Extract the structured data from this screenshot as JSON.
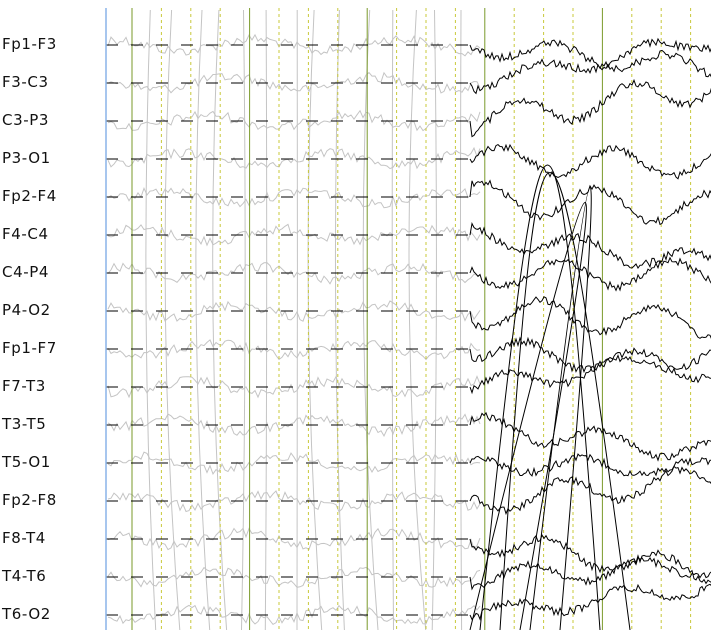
{
  "viewer": {
    "channels": [
      {
        "label": "Fp1-F3"
      },
      {
        "label": "F3-C3"
      },
      {
        "label": "C3-P3"
      },
      {
        "label": "P3-O1"
      },
      {
        "label": "Fp2-F4"
      },
      {
        "label": "F4-C4"
      },
      {
        "label": "C4-P4"
      },
      {
        "label": "P4-O2"
      },
      {
        "label": "Fp1-F7"
      },
      {
        "label": "F7-T3"
      },
      {
        "label": "T3-T5"
      },
      {
        "label": "T5-O1"
      },
      {
        "label": "Fp2-F8"
      },
      {
        "label": "F8-T4"
      },
      {
        "label": "T4-T6"
      },
      {
        "label": "T6-O2"
      }
    ],
    "colors": {
      "baseline": "#000000",
      "major_gridline": "#7a9a2a",
      "minor_gridline": "#c8c83a",
      "trace_active": "#000000",
      "trace_faded": "#c4c4c4",
      "cursor_line": "#8ab4e8",
      "label_text": "#111111"
    }
  }
}
